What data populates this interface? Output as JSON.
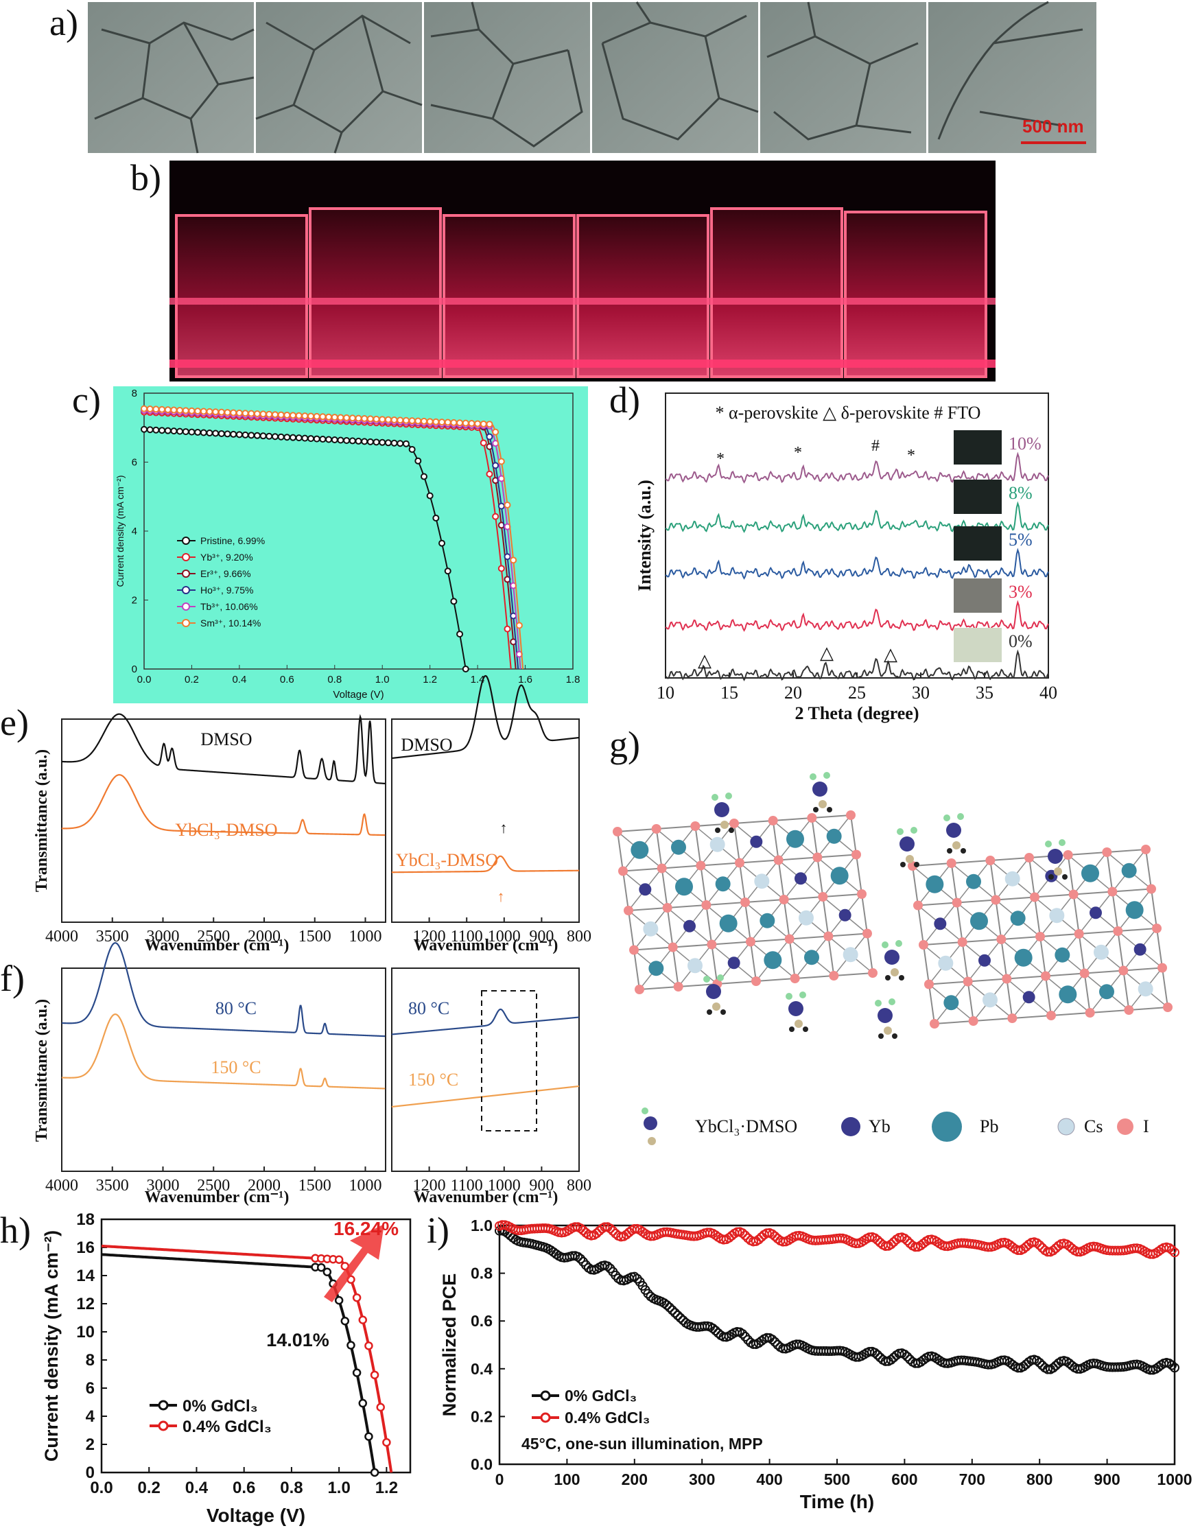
{
  "panel_labels": [
    "a)",
    "b)",
    "c)",
    "d)",
    "e)",
    "f)",
    "g)",
    "h)",
    "i)"
  ],
  "panel_a": {
    "scale_bar": "500 nm",
    "scale_color": "#d21a1a",
    "tiles": 6
  },
  "panel_b": {
    "vials": 6,
    "glow_color": "#ff2a55"
  },
  "chart_data": [
    {
      "id": "c",
      "type": "line",
      "xlabel": "Voltage (V)",
      "ylabel": "Current density (mA cm⁻²)",
      "xlim": [
        0,
        1.8
      ],
      "ylim": [
        0,
        8
      ],
      "xticks": [
        "0.0",
        "0.2",
        "0.4",
        "0.6",
        "0.8",
        "1.0",
        "1.2",
        "1.4",
        "1.6",
        "1.8"
      ],
      "yticks": [
        "0",
        "2",
        "4",
        "6",
        "8"
      ],
      "background": "#6ef3d2",
      "series": [
        {
          "name": "Pristine, 6.99%",
          "color": "#111111",
          "jsc": 6.95,
          "voc": 1.35,
          "vk": 1.1
        },
        {
          "name": "Yb³⁺, 9.20%",
          "color": "#e0202a",
          "jsc": 7.45,
          "voc": 1.54,
          "vk": 1.4
        },
        {
          "name": "Er³⁺,  9.66%",
          "color": "#8a1020",
          "jsc": 7.5,
          "voc": 1.56,
          "vk": 1.42
        },
        {
          "name": "Ho³⁺, 9.75%",
          "color": "#2a2f8a",
          "jsc": 7.5,
          "voc": 1.57,
          "vk": 1.43
        },
        {
          "name": "Tb³⁺, 10.06%",
          "color": "#c040c0",
          "jsc": 7.5,
          "voc": 1.58,
          "vk": 1.45
        },
        {
          "name": "Sm³⁺, 10.14%",
          "color": "#f07a30",
          "jsc": 7.55,
          "voc": 1.59,
          "vk": 1.46
        }
      ]
    },
    {
      "id": "d",
      "type": "line",
      "xlabel": "2 Theta (degree)",
      "ylabel": "Intensity (a.u.)",
      "xlim": [
        10,
        40
      ],
      "xticks": [
        "10",
        "15",
        "20",
        "25",
        "30",
        "35",
        "40"
      ],
      "legend_text": "* α-perovskite  △ δ-perovskite  # FTO",
      "series": [
        {
          "name": "10%",
          "color": "#9c5a8c",
          "peaks": [
            14.2,
            20.8,
            26.5,
            28.1,
            29.5,
            37.6
          ]
        },
        {
          "name": "8%",
          "color": "#2aa07a",
          "peaks": [
            14.2,
            20.8,
            26.5,
            29.5,
            37.6
          ]
        },
        {
          "name": "5%",
          "color": "#2a5aa0",
          "peaks": [
            14.2,
            20.8,
            26.5,
            33.8,
            37.6
          ]
        },
        {
          "name": "3%",
          "color": "#e03050",
          "peaks": [
            20.8,
            26.5,
            37.6
          ]
        },
        {
          "name": "0%",
          "color": "#333333",
          "peaks": [
            13.0,
            21.0,
            22.5,
            26.5,
            27.5,
            31.3,
            33.8,
            37.6
          ]
        }
      ],
      "markers": [
        "*",
        "*",
        "#",
        "*",
        "△",
        "△",
        "△"
      ]
    },
    {
      "id": "e",
      "type": "line",
      "xlabel": "Wavenumber (cm⁻¹)",
      "ylabel": "Transmittance (a.u.)",
      "xticks_left": [
        "4000",
        "3500",
        "3000",
        "2500",
        "2000",
        "1500",
        "1000"
      ],
      "xticks_right": [
        "1200",
        "1100",
        "1000",
        "900",
        "800"
      ],
      "series": [
        {
          "name": "DMSO",
          "color": "#111111"
        },
        {
          "name": "YbCl₃-DMSO",
          "color": "#f07a30"
        }
      ]
    },
    {
      "id": "f",
      "type": "line",
      "xlabel": "Wavenumber (cm⁻¹)",
      "ylabel": "Transmittance (a.u.)",
      "xticks_left": [
        "4000",
        "3500",
        "3000",
        "2500",
        "2000",
        "1500",
        "1000"
      ],
      "xticks_right": [
        "1200",
        "1100",
        "1000",
        "900",
        "800"
      ],
      "series": [
        {
          "name": "80 °C",
          "color": "#2a4a8a"
        },
        {
          "name": "150 °C",
          "color": "#f0a050"
        }
      ]
    },
    {
      "id": "h",
      "type": "line",
      "xlabel": "Voltage (V)",
      "ylabel": "Current density (mA cm⁻²)",
      "xlim": [
        0,
        1.3
      ],
      "ylim": [
        0,
        18
      ],
      "xticks": [
        "0.0",
        "0.2",
        "0.4",
        "0.6",
        "0.8",
        "1.0",
        "1.2"
      ],
      "yticks": [
        "0",
        "2",
        "4",
        "6",
        "8",
        "10",
        "12",
        "14",
        "16",
        "18"
      ],
      "annotations": [
        "16.24%",
        "14.01%"
      ],
      "series": [
        {
          "name": "0% GdCl₃",
          "color": "#111111",
          "jsc": 15.5,
          "voc": 1.15,
          "pce": "14.01%"
        },
        {
          "name": "0.4% GdCl₃",
          "color": "#e02020",
          "jsc": 16.1,
          "voc": 1.22,
          "pce": "16.24%"
        }
      ]
    },
    {
      "id": "i",
      "type": "scatter",
      "xlabel": "Time (h)",
      "ylabel": "Normalized PCE",
      "xlim": [
        0,
        1000
      ],
      "ylim": [
        0,
        1.0
      ],
      "xticks": [
        "0",
        "100",
        "200",
        "300",
        "400",
        "500",
        "600",
        "700",
        "800",
        "900",
        "1000"
      ],
      "yticks": [
        "0.0",
        "0.2",
        "0.4",
        "0.6",
        "0.8",
        "1.0"
      ],
      "condition": "45°C, one-sun illumination, MPP",
      "series": [
        {
          "name": "0% GdCl₃",
          "color": "#111111",
          "start": 0.97,
          "end": 0.4
        },
        {
          "name": "0.4% GdCl₃",
          "color": "#e02020",
          "start": 0.99,
          "end": 0.89
        }
      ]
    }
  ],
  "panel_g": {
    "legend": [
      "YbCl₃·DMSO",
      "Yb",
      "Pb",
      "Cs",
      "I"
    ],
    "colors": {
      "Yb": "#3a3a8c",
      "Pb": "#3a8aa0",
      "Cs": "#c8dce8",
      "I": "#f08c8c",
      "bond": "#8a8a8a"
    }
  }
}
